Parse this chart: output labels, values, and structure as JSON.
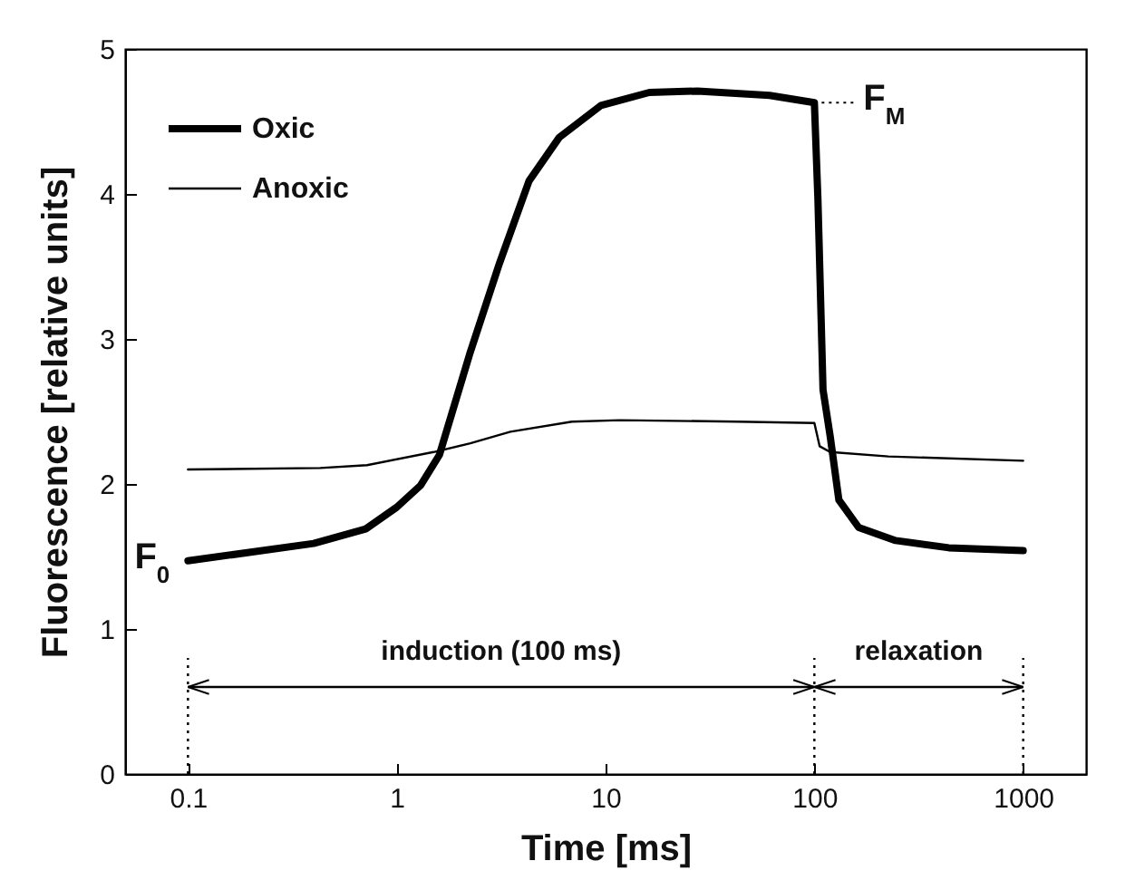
{
  "chart_data": {
    "type": "line",
    "xlabel": "Time [ms]",
    "ylabel": "Fluorescence [relative units]",
    "log": "x",
    "xlim": [
      0.05,
      2000
    ],
    "xticks": [
      0.1,
      1,
      10,
      100,
      1000
    ],
    "ylim": [
      0,
      5
    ],
    "yticks": [
      0,
      1,
      2,
      3,
      4,
      5
    ],
    "grid": false,
    "legend": "top left",
    "marker": "none",
    "line_style": "solid",
    "series": [
      {
        "name": "Oxic",
        "color": "#000000",
        "x": [
          0.1,
          0.4,
          0.71,
          1.0,
          1.3,
          1.6,
          2.25,
          3.1,
          4.3,
          6.0,
          9.5,
          16.2,
          27.6,
          61,
          100,
          104,
          110,
          119,
          131,
          163,
          245,
          440,
          1000
        ],
        "values": [
          1.47,
          1.59,
          1.69,
          1.84,
          1.99,
          2.2,
          2.91,
          3.52,
          4.09,
          4.39,
          4.61,
          4.7,
          4.71,
          4.68,
          4.63,
          3.96,
          2.65,
          2.33,
          1.89,
          1.7,
          1.61,
          1.56,
          1.54
        ]
      },
      {
        "name": "Anoxic",
        "color": "#000000",
        "x": [
          0.1,
          0.43,
          0.72,
          1.5,
          2.25,
          3.5,
          6.9,
          11.7,
          43,
          100,
          106,
          119,
          226,
          1000
        ],
        "values": [
          2.1,
          2.11,
          2.13,
          2.22,
          2.28,
          2.36,
          2.43,
          2.44,
          2.43,
          2.42,
          2.26,
          2.22,
          2.19,
          2.16
        ]
      }
    ],
    "annotations": [
      {
        "text": "F$_{M}$",
        "x": 100,
        "y": 4.63
      },
      {
        "text": "F$_{0}$",
        "x": 0.1,
        "y": 1.47
      },
      "induction (100 ms)",
      "relaxation"
    ],
    "ref_lines": [
      {
        "axis": "x",
        "value": 0.1,
        "line_style": "dotted"
      },
      {
        "axis": "x",
        "value": 100,
        "line_style": "dotted"
      },
      {
        "axis": "x",
        "value": 1000,
        "line_style": "dotted"
      }
    ]
  }
}
